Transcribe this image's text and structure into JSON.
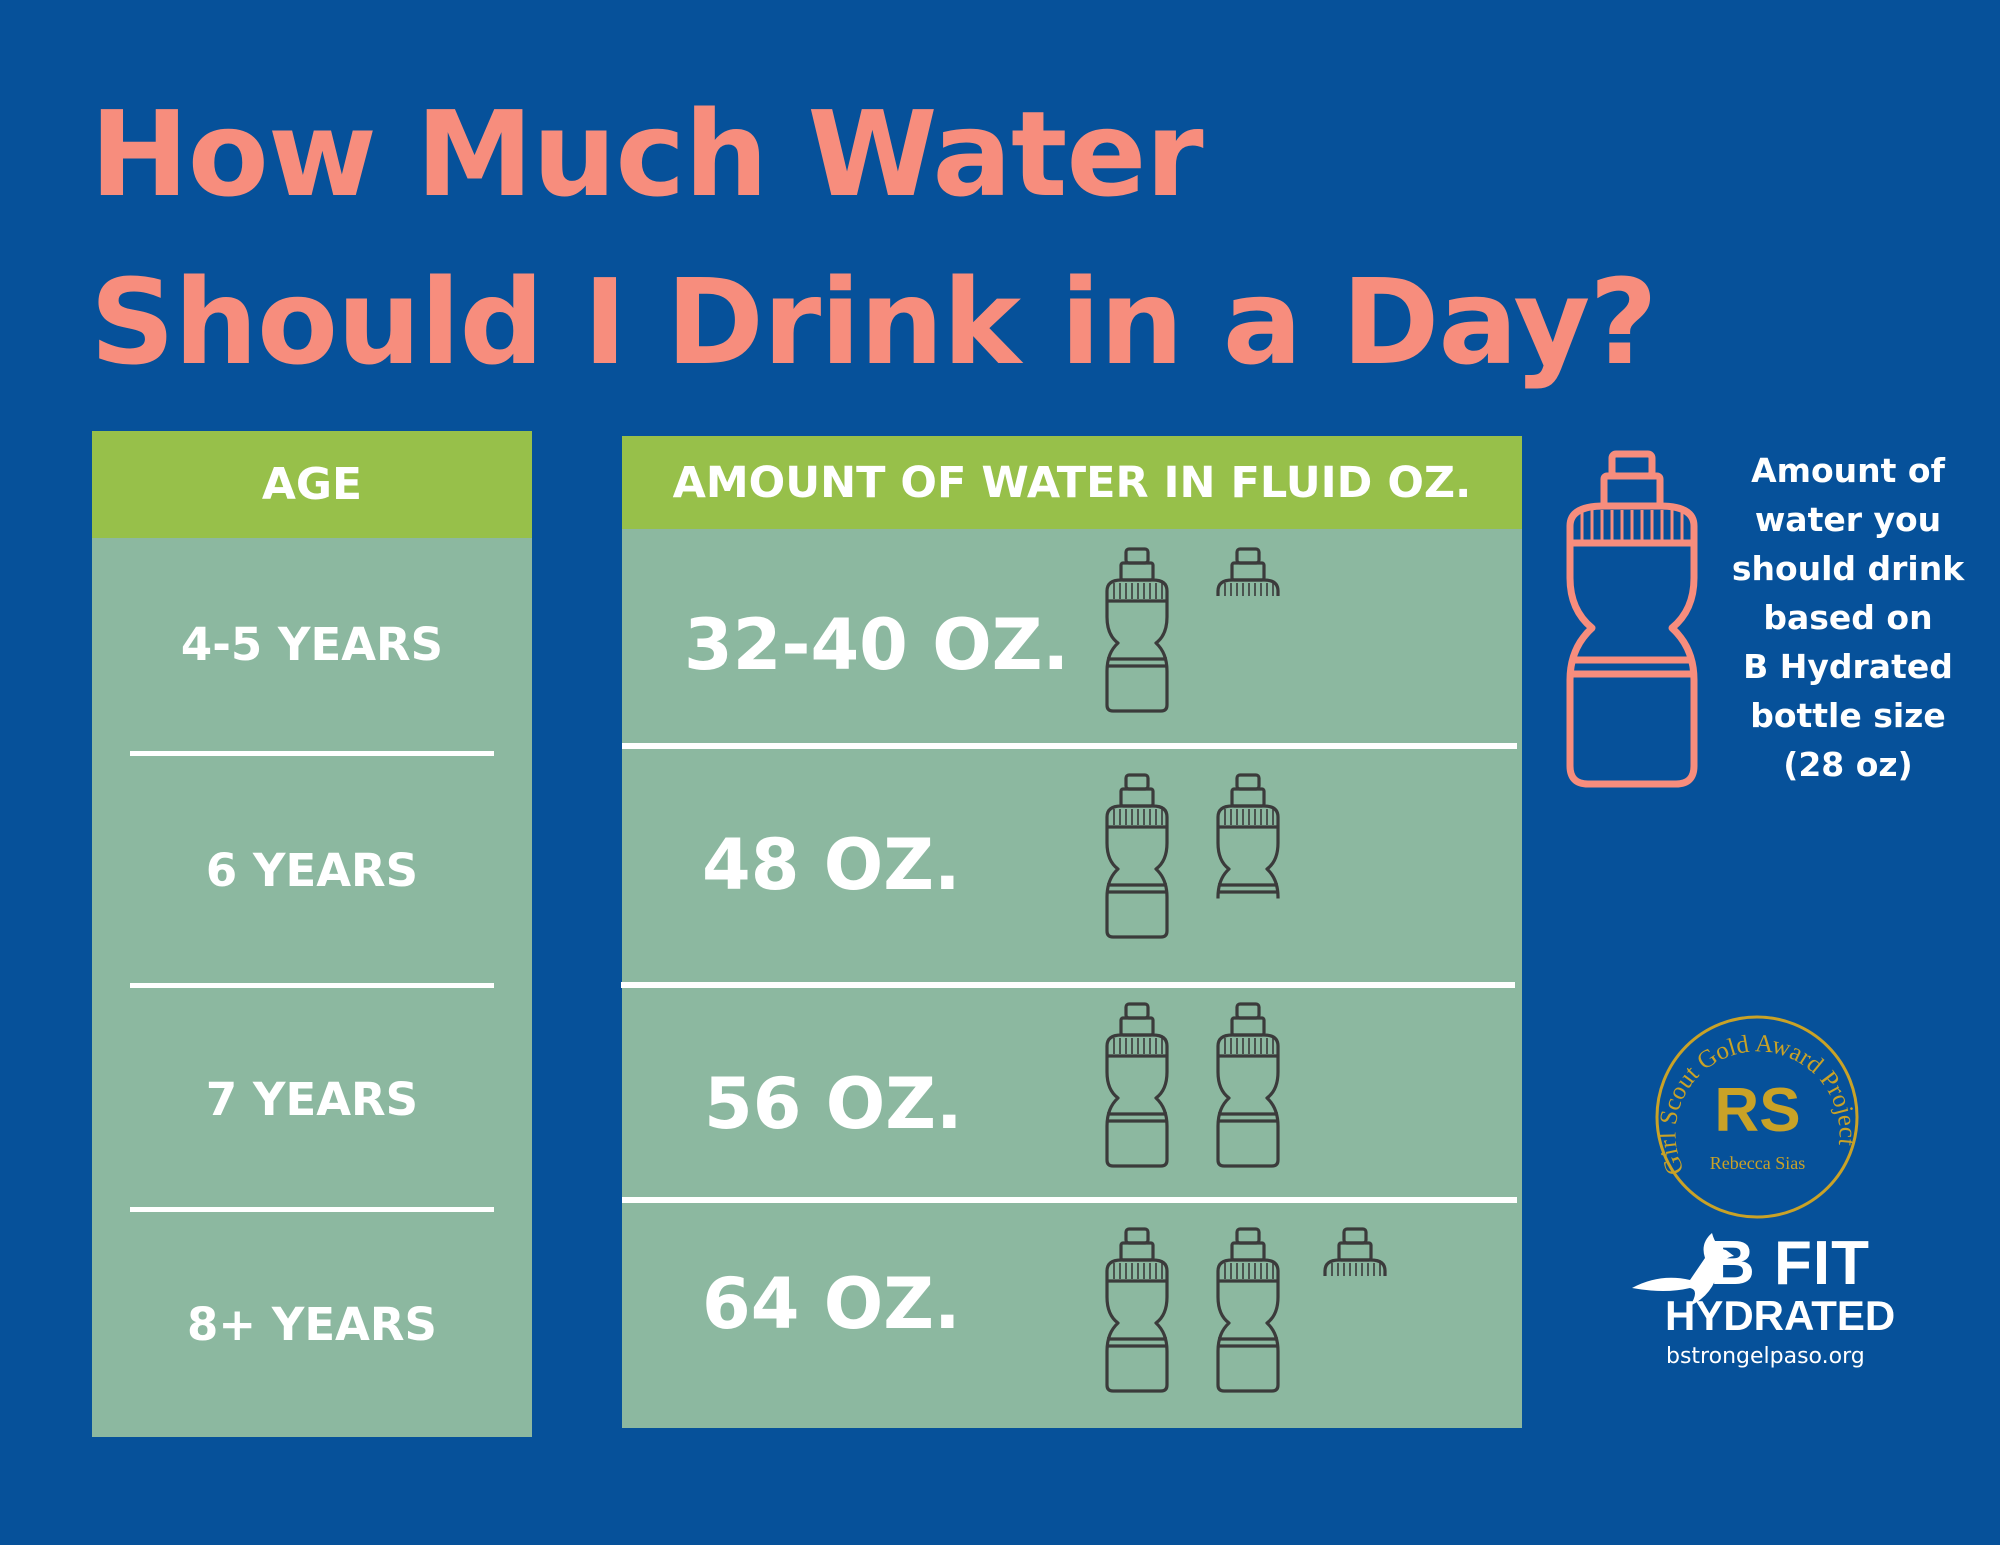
{
  "title": {
    "line1": "How Much Water",
    "line2": "Should I Drink in a Day?"
  },
  "age_column": {
    "header": "AGE",
    "rows": [
      "4-5 YEARS",
      "6 YEARS",
      "7 YEARS",
      "8+ YEARS"
    ]
  },
  "amount_column": {
    "header": "AMOUNT OF WATER IN FLUID OZ.",
    "rows": [
      {
        "label": "32-40 OZ.",
        "full_bottles": 1,
        "partial_fraction": 0.3
      },
      {
        "label": "48 OZ.",
        "full_bottles": 1,
        "partial_fraction": 0.75
      },
      {
        "label": "56 OZ.",
        "full_bottles": 2,
        "partial_fraction": 0
      },
      {
        "label": "64 OZ.",
        "full_bottles": 2,
        "partial_fraction": 0.3
      }
    ]
  },
  "note": {
    "text": "Amount of\nwater you\nshould drink\nbased on\nB Hydrated\nbottle size\n(28 oz)"
  },
  "seal": {
    "ring_text": "Girl Scout Gold Award Project",
    "initials": "RS",
    "name": "Rebecca Sias"
  },
  "logo": {
    "line1": "B FIT",
    "line2": "HYDRATED",
    "url": "bstrongelpaso.org"
  },
  "colors": {
    "background": "#06519a",
    "title": "#f78d7d",
    "header": "#97c04a",
    "panel": "#8cb8a0",
    "icon": "#3b3b3b",
    "gold": "#c9a227"
  }
}
